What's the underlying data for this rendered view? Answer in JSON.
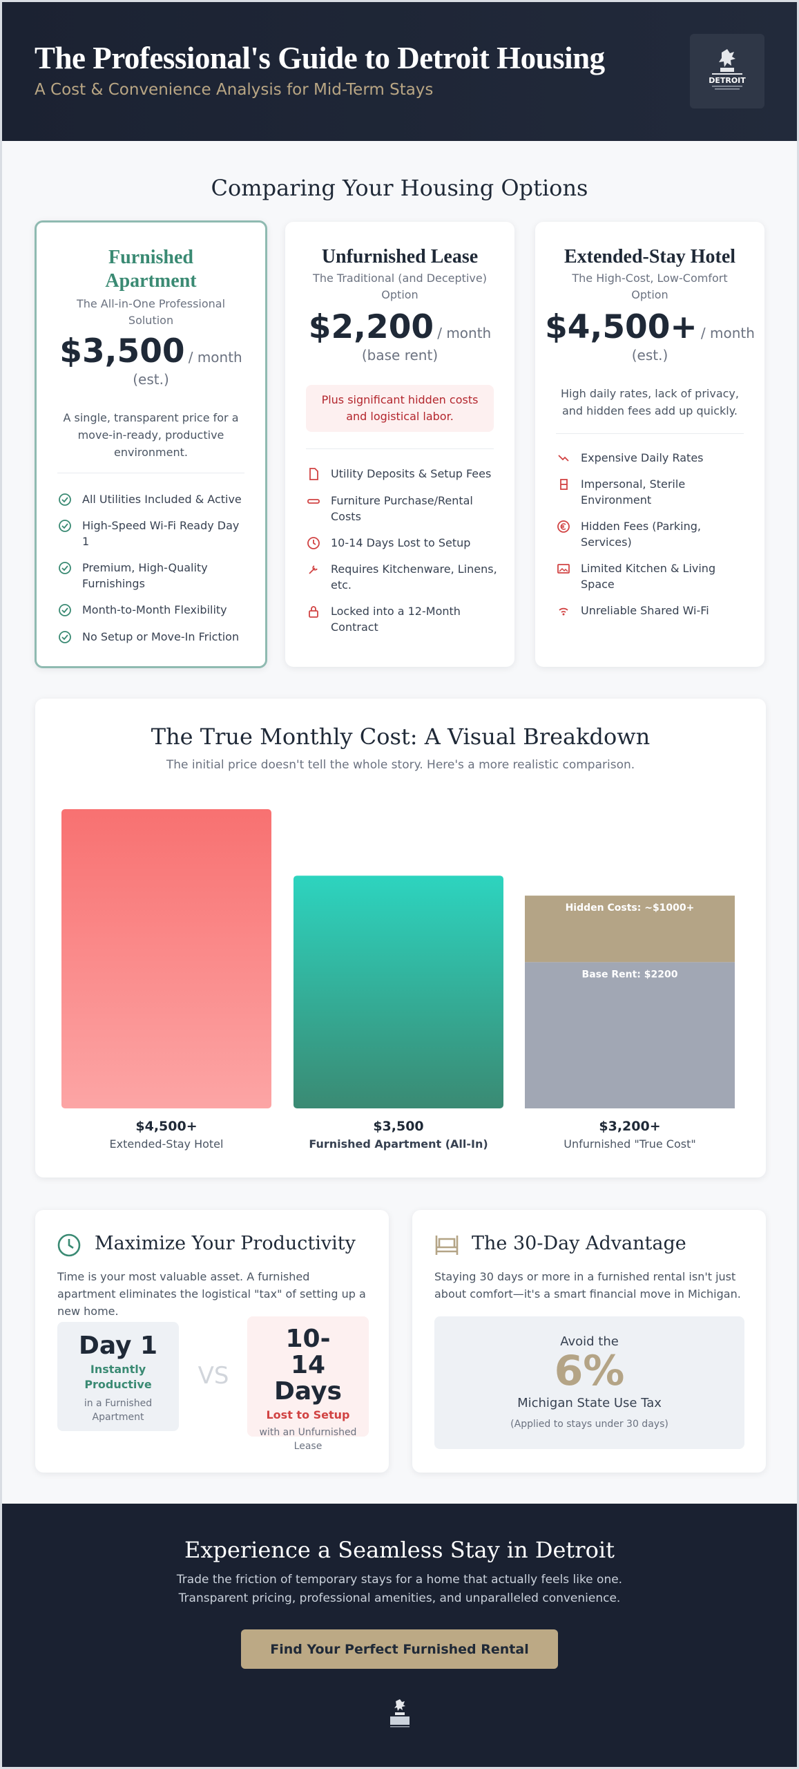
{
  "header": {
    "title": "The Professional's Guide to Detroit Housing",
    "subtitle": "A Cost & Convenience Analysis for Mid-Term Stays",
    "logo_text": "DETROIT"
  },
  "comparison": {
    "title": "Comparing Your Housing Options",
    "options": [
      {
        "title": "Furnished Apartment",
        "subtitle": "The All-in-One Professional Solution",
        "price": "$3,500",
        "per": "/ month (est.)",
        "description": "A single, transparent price for a move-in-ready, productive environment.",
        "features": [
          {
            "icon": "check-circle-icon",
            "text": "All Utilities Included & Active"
          },
          {
            "icon": "check-circle-icon",
            "text": "High-Speed Wi-Fi Ready Day 1"
          },
          {
            "icon": "check-circle-icon",
            "text": "Premium, High-Quality Furnishings"
          },
          {
            "icon": "check-circle-icon",
            "text": "Month-to-Month Flexibility"
          },
          {
            "icon": "check-circle-icon",
            "text": "No Setup or Move-In Friction"
          }
        ]
      },
      {
        "title": "Unfurnished Lease",
        "subtitle": "The Traditional (and Deceptive) Option",
        "price": "$2,200",
        "per": "/ month (base rent)",
        "warning": "Plus significant hidden costs and logistical labor.",
        "features": [
          {
            "icon": "file-icon",
            "text": "Utility Deposits & Setup Fees"
          },
          {
            "icon": "truck-icon",
            "text": "Furniture Purchase/Rental Costs"
          },
          {
            "icon": "clock-icon",
            "text": "10-14 Days Lost to Setup"
          },
          {
            "icon": "tools-icon",
            "text": "Requires Kitchenware, Linens, etc."
          },
          {
            "icon": "lock-icon",
            "text": "Locked into a 12-Month Contract"
          }
        ]
      },
      {
        "title": "Extended-Stay Hotel",
        "subtitle": "The High-Cost, Low-Comfort Option",
        "price": "$4,500+",
        "per": "/ month (est.)",
        "description": "High daily rates, lack of privacy, and hidden fees add up quickly.",
        "features": [
          {
            "icon": "chart-down-icon",
            "text": "Expensive Daily Rates"
          },
          {
            "icon": "building-icon",
            "text": "Impersonal, Sterile Environment"
          },
          {
            "icon": "euro-icon",
            "text": "Hidden Fees (Parking, Services)"
          },
          {
            "icon": "image-icon",
            "text": "Limited Kitchen & Living Space"
          },
          {
            "icon": "wifi-off-icon",
            "text": "Unreliable Shared Wi-Fi"
          }
        ]
      }
    ]
  },
  "chart_data": {
    "type": "bar",
    "title": "The True Monthly Cost: A Visual Breakdown",
    "subtitle": "The initial price doesn't tell the whole story. Here's a more realistic comparison.",
    "categories": [
      "Extended-Stay Hotel",
      "Furnished Apartment (All-In)",
      "Unfurnished \"True Cost\""
    ],
    "value_labels": [
      "$4,500+",
      "$3,500",
      "$3,200+"
    ],
    "values": [
      4500,
      3500,
      3200
    ],
    "stacked_segments": [
      {
        "name": "Base Rent",
        "label": "Base Rent: $2200",
        "value": 2200
      },
      {
        "name": "Hidden Costs",
        "label": "Hidden Costs: ~$1000+",
        "value": 1000
      }
    ],
    "colors": {
      "hotel": "#f87171",
      "furnished": "#2dd4bf",
      "base": "#a1a7b4",
      "hidden": "#b4a486"
    },
    "ylim": [
      0,
      4500
    ],
    "grid": false
  },
  "productivity": {
    "title": "Maximize Your Productivity",
    "text": "Time is your most valuable asset. A furnished apartment eliminates the logistical \"tax\" of setting up a new home.",
    "left": {
      "big": "Day 1",
      "accent": "Instantly Productive",
      "small": "in a Furnished Apartment"
    },
    "vs": "VS",
    "right": {
      "big": "10-14 Days",
      "accent": "Lost to Setup",
      "small": "with an Unfurnished Lease"
    }
  },
  "advantage": {
    "title": "The 30-Day Advantage",
    "text": "Staying 30 days or more in a furnished rental isn't just about comfort—it's a smart financial move in Michigan.",
    "avoid": "Avoid the",
    "percent": "6%",
    "tax": "Michigan State Use Tax",
    "note": "(Applied to stays under 30 days)"
  },
  "footer": {
    "title": "Experience a Seamless Stay in Detroit",
    "text_line1": "Trade the friction of temporary stays for a home that actually feels like one.",
    "text_line2": "Transparent pricing, professional amenities, and unparalleled convenience.",
    "cta": "Find Your Perfect Furnished Rental"
  },
  "colors": {
    "accent_green": "#3a8a73",
    "accent_red": "#d14343",
    "accent_gold": "#b4a486",
    "navy": "#1b2232"
  }
}
